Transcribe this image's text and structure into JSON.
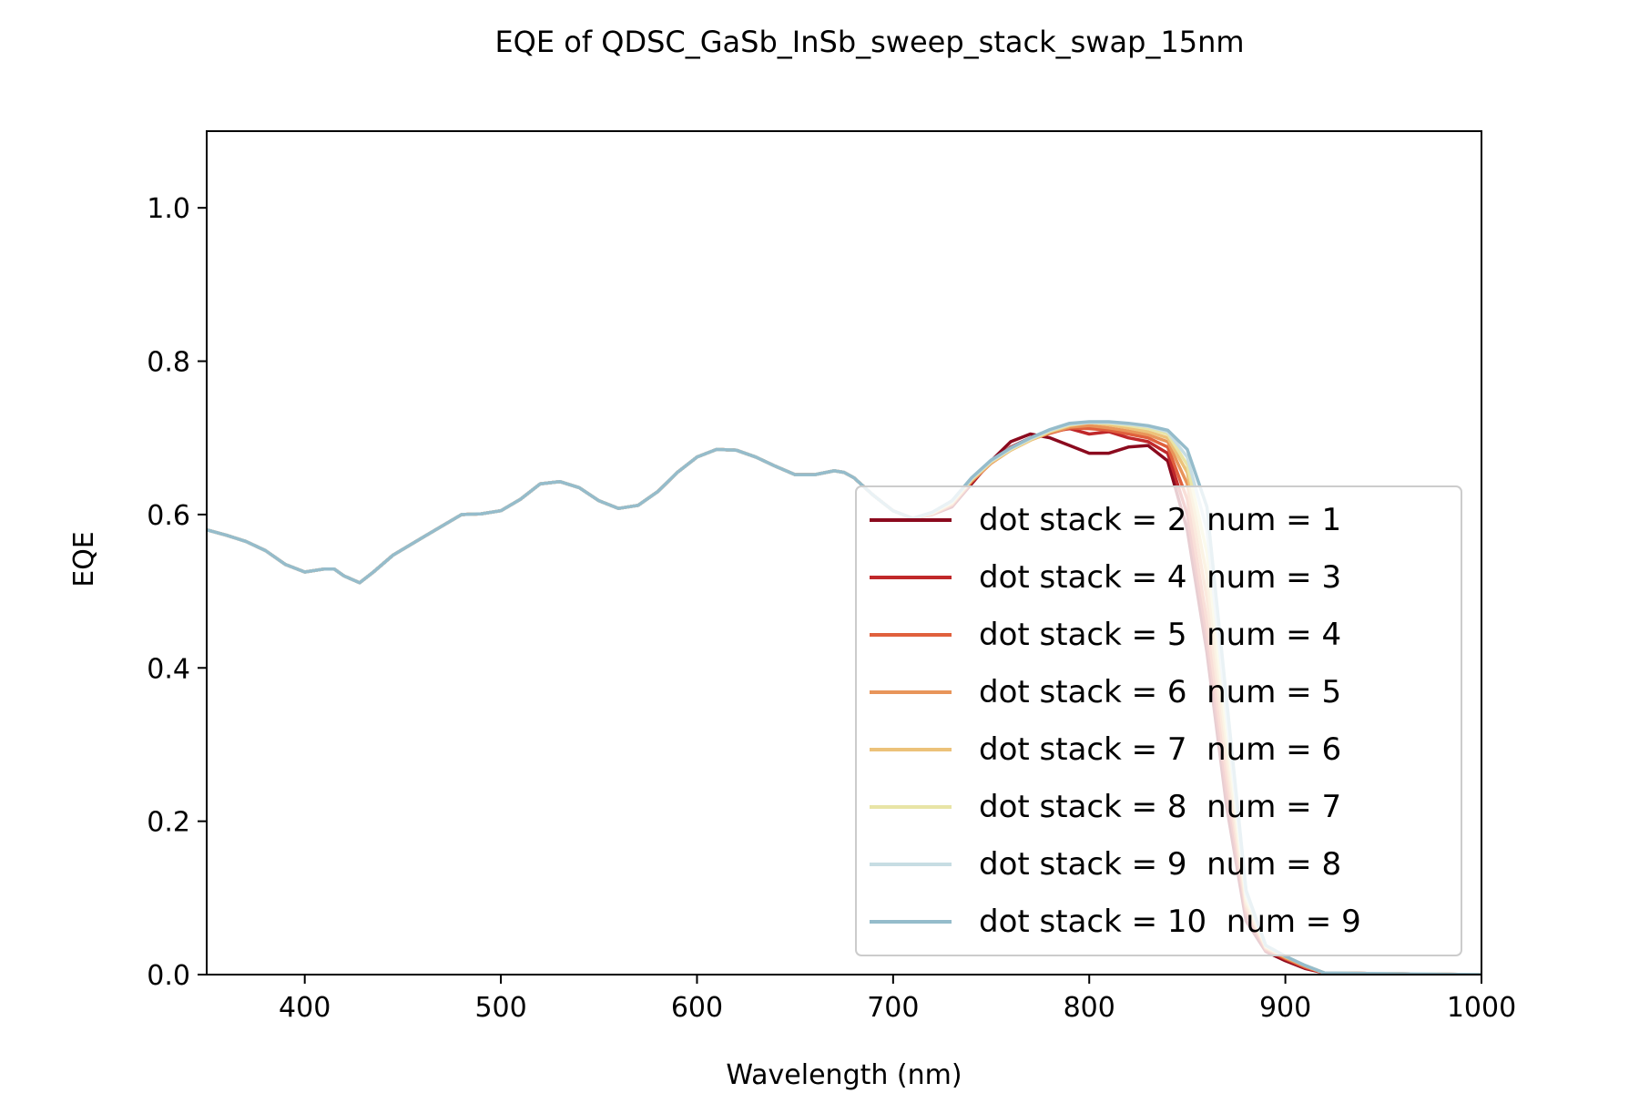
{
  "chart_data": {
    "type": "line",
    "title": "EQE of  QDSC_GaSb_InSb_sweep_stack_swap_15nm",
    "xlabel": "Wavelength (nm)",
    "ylabel": "EQE",
    "xlim": [
      350,
      1000
    ],
    "ylim": [
      0,
      1.1
    ],
    "xticks": [
      "400",
      "500",
      "600",
      "700",
      "800",
      "900",
      "1000"
    ],
    "yticks": [
      "0.0",
      "0.2",
      "0.4",
      "0.6",
      "0.8",
      "1.0"
    ],
    "grid": false,
    "legend_position": "lower-right",
    "common_x": [
      350,
      360,
      370,
      380,
      390,
      400,
      410,
      415,
      420,
      428,
      435,
      445,
      460,
      470,
      480,
      490,
      500,
      510,
      520,
      530,
      540,
      550,
      560,
      570,
      580,
      590,
      600,
      610,
      620,
      630,
      640,
      650,
      660,
      670,
      675,
      680,
      690,
      700
    ],
    "common_y": [
      0.58,
      0.573,
      0.565,
      0.553,
      0.535,
      0.525,
      0.529,
      0.529,
      0.52,
      0.511,
      0.525,
      0.547,
      0.57,
      0.585,
      0.6,
      0.601,
      0.605,
      0.62,
      0.64,
      0.643,
      0.635,
      0.618,
      0.608,
      0.612,
      0.63,
      0.655,
      0.675,
      0.685,
      0.684,
      0.675,
      0.663,
      0.652,
      0.652,
      0.657,
      0.655,
      0.648,
      0.625,
      0.605
    ],
    "series": [
      {
        "name": "dot stack = 2  num = 1",
        "color": "#8b0a1e",
        "x": [
          710,
          720,
          730,
          740,
          750,
          760,
          770,
          780,
          790,
          800,
          810,
          820,
          830,
          840,
          850,
          860,
          870,
          880,
          890,
          900,
          910,
          920,
          1000
        ],
        "y": [
          0.595,
          0.6,
          0.61,
          0.64,
          0.67,
          0.695,
          0.705,
          0.7,
          0.69,
          0.68,
          0.68,
          0.688,
          0.69,
          0.67,
          0.58,
          0.42,
          0.22,
          0.07,
          0.03,
          0.018,
          0.008,
          0.002,
          0.0
        ]
      },
      {
        "name": "dot stack = 4  num = 3",
        "color": "#c0282a",
        "x": [
          710,
          720,
          730,
          740,
          750,
          760,
          770,
          780,
          790,
          800,
          810,
          820,
          830,
          840,
          850,
          860,
          870,
          880,
          890,
          900,
          910,
          920,
          1000
        ],
        "y": [
          0.595,
          0.6,
          0.612,
          0.642,
          0.668,
          0.688,
          0.7,
          0.708,
          0.712,
          0.705,
          0.708,
          0.7,
          0.695,
          0.68,
          0.6,
          0.44,
          0.24,
          0.08,
          0.032,
          0.02,
          0.009,
          0.002,
          0.0
        ]
      },
      {
        "name": "dot stack = 5  num = 4",
        "color": "#e0603d",
        "x": [
          710,
          720,
          730,
          740,
          750,
          760,
          770,
          780,
          790,
          800,
          810,
          820,
          830,
          840,
          850,
          860,
          870,
          880,
          890,
          900,
          910,
          920,
          1000
        ],
        "y": [
          0.595,
          0.601,
          0.613,
          0.643,
          0.667,
          0.685,
          0.698,
          0.706,
          0.713,
          0.712,
          0.71,
          0.705,
          0.7,
          0.688,
          0.62,
          0.46,
          0.26,
          0.085,
          0.034,
          0.021,
          0.01,
          0.002,
          0.0
        ]
      },
      {
        "name": "dot stack = 6  num = 5",
        "color": "#e8955a",
        "x": [
          710,
          720,
          730,
          740,
          750,
          760,
          770,
          780,
          790,
          800,
          810,
          820,
          830,
          840,
          850,
          860,
          870,
          880,
          890,
          900,
          910,
          920,
          1000
        ],
        "y": [
          0.595,
          0.601,
          0.614,
          0.644,
          0.667,
          0.684,
          0.697,
          0.707,
          0.714,
          0.716,
          0.713,
          0.709,
          0.704,
          0.695,
          0.64,
          0.49,
          0.28,
          0.09,
          0.035,
          0.022,
          0.011,
          0.002,
          0.0
        ]
      },
      {
        "name": "dot stack = 7  num = 6",
        "color": "#ecc27a",
        "x": [
          710,
          720,
          730,
          740,
          750,
          760,
          770,
          780,
          790,
          800,
          810,
          820,
          830,
          840,
          850,
          860,
          870,
          880,
          890,
          900,
          910,
          920,
          1000
        ],
        "y": [
          0.595,
          0.602,
          0.615,
          0.645,
          0.668,
          0.684,
          0.697,
          0.708,
          0.716,
          0.72,
          0.717,
          0.713,
          0.708,
          0.7,
          0.655,
          0.52,
          0.3,
          0.095,
          0.036,
          0.023,
          0.012,
          0.002,
          0.0
        ]
      },
      {
        "name": "dot stack = 8  num = 7",
        "color": "#e8e4a6",
        "x": [
          710,
          720,
          730,
          740,
          750,
          760,
          770,
          780,
          790,
          800,
          810,
          820,
          830,
          840,
          850,
          860,
          870,
          880,
          890,
          900,
          910,
          920,
          1000
        ],
        "y": [
          0.595,
          0.602,
          0.616,
          0.646,
          0.669,
          0.685,
          0.698,
          0.709,
          0.717,
          0.72,
          0.719,
          0.716,
          0.712,
          0.705,
          0.665,
          0.55,
          0.32,
          0.1,
          0.037,
          0.024,
          0.012,
          0.002,
          0.0
        ]
      },
      {
        "name": "dot stack = 9  num = 8",
        "color": "#c7dde3",
        "x": [
          710,
          720,
          730,
          740,
          750,
          760,
          770,
          780,
          790,
          800,
          810,
          820,
          830,
          840,
          850,
          860,
          870,
          880,
          890,
          900,
          910,
          920,
          1000
        ],
        "y": [
          0.595,
          0.603,
          0.617,
          0.647,
          0.67,
          0.686,
          0.699,
          0.71,
          0.718,
          0.72,
          0.72,
          0.718,
          0.715,
          0.708,
          0.675,
          0.58,
          0.34,
          0.105,
          0.038,
          0.024,
          0.012,
          0.002,
          0.0
        ]
      },
      {
        "name": "dot stack = 10  num = 9",
        "color": "#95bccb",
        "x": [
          710,
          720,
          730,
          740,
          750,
          760,
          770,
          780,
          790,
          800,
          810,
          820,
          830,
          840,
          850,
          860,
          870,
          880,
          890,
          900,
          910,
          920,
          1000
        ],
        "y": [
          0.595,
          0.603,
          0.618,
          0.648,
          0.671,
          0.687,
          0.7,
          0.711,
          0.719,
          0.721,
          0.721,
          0.719,
          0.716,
          0.71,
          0.685,
          0.61,
          0.36,
          0.11,
          0.038,
          0.024,
          0.012,
          0.002,
          0.0
        ]
      }
    ]
  }
}
